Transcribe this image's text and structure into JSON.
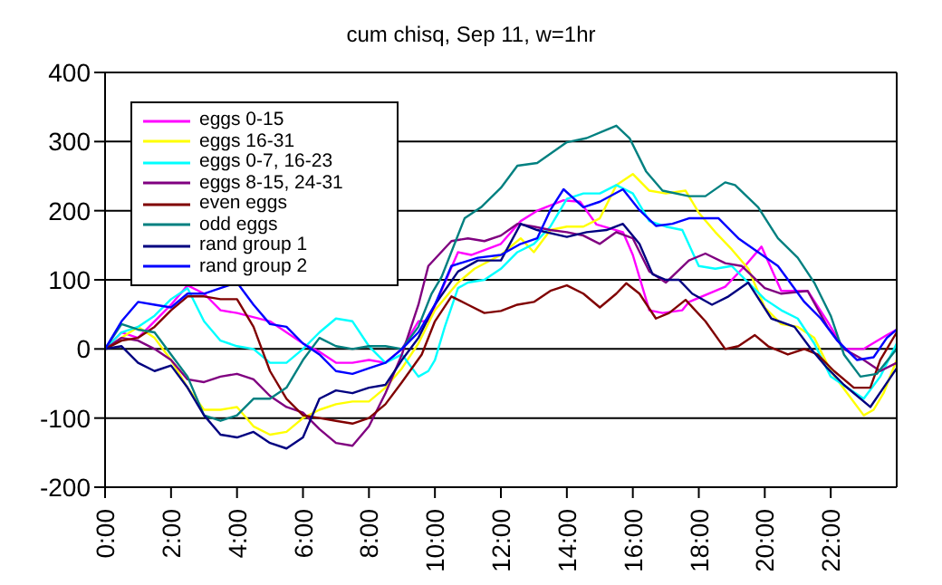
{
  "chart_data": {
    "type": "line",
    "title": "cum chisq, Sep 11, w=1hr",
    "xlim": [
      0,
      24
    ],
    "xticks": [
      {
        "value": 0,
        "label": "0:00"
      },
      {
        "value": 2,
        "label": "2:00"
      },
      {
        "value": 4,
        "label": "4:00"
      },
      {
        "value": 6,
        "label": "6:00"
      },
      {
        "value": 8,
        "label": "8:00"
      },
      {
        "value": 10,
        "label": "10:00"
      },
      {
        "value": 12,
        "label": "12:00"
      },
      {
        "value": 14,
        "label": "14:00"
      },
      {
        "value": 16,
        "label": "16:00"
      },
      {
        "value": 18,
        "label": "18:00"
      },
      {
        "value": 20,
        "label": "20:00"
      },
      {
        "value": 22,
        "label": "22:00"
      }
    ],
    "ylim": [
      -200,
      400
    ],
    "yticks": [
      -200,
      -100,
      0,
      100,
      200,
      300,
      400
    ],
    "grid": "y",
    "legend": "top left",
    "marker": "none",
    "line_style": "solid",
    "series": [
      {
        "name": "eggs 0-15",
        "color": "#ff00ff",
        "x": [
          0,
          0.5,
          1,
          1.5,
          2,
          2.5,
          3,
          3.5,
          4,
          5,
          6,
          6.5,
          7,
          7.5,
          8,
          8.5,
          9,
          9.5,
          9.8,
          10.7,
          11.1,
          12,
          12.6,
          13.1,
          13.9,
          14.4,
          14.9,
          15.7,
          16,
          16.5,
          16.9,
          17.5,
          17.7,
          18.8,
          19.4,
          19.9,
          20.5,
          21.3,
          21.9,
          22.4,
          23,
          23.7,
          24
        ],
        "values": [
          0,
          24,
          16,
          40,
          64,
          92,
          80,
          56,
          52,
          40,
          8,
          -4,
          -20,
          -20,
          -16,
          -20,
          0,
          40,
          40,
          140,
          136,
          152,
          185,
          200,
          215,
          213,
          180,
          169,
          136,
          56,
          52,
          56,
          68,
          90,
          120,
          148,
          84,
          84,
          40,
          0,
          0,
          20,
          28
        ]
      },
      {
        "name": "eggs 16-31",
        "color": "#ffff00",
        "x": [
          0,
          0.5,
          1,
          1.5,
          2,
          2.5,
          3,
          3.5,
          4,
          4.5,
          5,
          5.5,
          6,
          6.5,
          7,
          7.5,
          8,
          8.5,
          9,
          9.5,
          10,
          10.7,
          11.2,
          12,
          12.6,
          13,
          13.5,
          14,
          14.5,
          15,
          15.5,
          16,
          16.5,
          17,
          17.6,
          18,
          18.5,
          19,
          19.5,
          20,
          20.5,
          21,
          21.5,
          22,
          22.5,
          23,
          23.3,
          23.6,
          24
        ],
        "values": [
          0,
          16,
          32,
          16,
          -16,
          -56,
          -88,
          -88,
          -84,
          -112,
          -124,
          -120,
          -100,
          -88,
          -80,
          -76,
          -76,
          -56,
          -28,
          8,
          56,
          96,
          116,
          136,
          160,
          140,
          172,
          177,
          177,
          189,
          237,
          253,
          229,
          225,
          229,
          197,
          169,
          144,
          116,
          60,
          36,
          32,
          16,
          -32,
          -64,
          -96,
          -88,
          -64,
          -16
        ]
      },
      {
        "name": "eggs 0-7, 16-23",
        "color": "#00ffff",
        "x": [
          0,
          0.5,
          1,
          1.5,
          2,
          2.5,
          3,
          3.5,
          4,
          4.5,
          5,
          5.5,
          6,
          6.5,
          7,
          7.5,
          8,
          8.5,
          9,
          9.5,
          9.8,
          10,
          10.3,
          10.7,
          11,
          11.5,
          12,
          12.5,
          13,
          13.5,
          14,
          14.5,
          15,
          15.5,
          16,
          16.5,
          17,
          17.5,
          18,
          18.5,
          19,
          19.5,
          20,
          20.5,
          21,
          21.5,
          22,
          22.5,
          23,
          23.5,
          24
        ],
        "values": [
          0,
          24,
          32,
          48,
          72,
          88,
          40,
          12,
          4,
          0,
          -20,
          -20,
          0,
          24,
          44,
          40,
          4,
          -20,
          -8,
          -40,
          -32,
          -16,
          32,
          88,
          96,
          100,
          116,
          140,
          152,
          177,
          217,
          225,
          225,
          237,
          225,
          185,
          177,
          172,
          120,
          116,
          120,
          96,
          72,
          56,
          44,
          8,
          -40,
          -56,
          -72,
          -40,
          8
        ]
      },
      {
        "name": "eggs 8-15, 24-31",
        "color": "#800080",
        "x": [
          0,
          0.5,
          1,
          1.5,
          2,
          2.5,
          3,
          3.5,
          4,
          4.5,
          5,
          5.5,
          6,
          6.5,
          7,
          7.5,
          8,
          8.5,
          9,
          9.5,
          9.8,
          10.5,
          11,
          11.5,
          12,
          12.5,
          13,
          13.5,
          14,
          14.5,
          15,
          15.5,
          16,
          16.5,
          17,
          17.7,
          18.2,
          18.8,
          19.3,
          20,
          20.5,
          21.3,
          21.9,
          22.4,
          23,
          23.5,
          24
        ],
        "values": [
          0,
          16,
          12,
          0,
          -16,
          -44,
          -48,
          -40,
          -36,
          -44,
          -68,
          -84,
          -92,
          -116,
          -136,
          -140,
          -112,
          -64,
          -8,
          64,
          120,
          156,
          160,
          156,
          164,
          181,
          177,
          172,
          169,
          164,
          152,
          169,
          160,
          112,
          96,
          128,
          138,
          124,
          120,
          88,
          80,
          84,
          32,
          0,
          -16,
          -32,
          -20
        ]
      },
      {
        "name": "even eggs",
        "color": "#800000",
        "x": [
          0,
          0.5,
          1,
          1.5,
          2,
          2.5,
          3,
          3.5,
          4,
          4.5,
          5,
          5.5,
          6,
          6.5,
          7,
          7.5,
          8,
          8.5,
          9,
          9.6,
          10,
          10.5,
          11,
          11.5,
          12,
          12.5,
          13,
          13.5,
          14,
          14.5,
          15,
          15.5,
          15.8,
          16.2,
          16.7,
          17.1,
          17.6,
          18.2,
          18.8,
          19.2,
          19.7,
          20.1,
          20.7,
          21.2,
          21.6,
          22.1,
          22.7,
          23.2,
          23.5,
          24
        ],
        "values": [
          0,
          12,
          16,
          32,
          56,
          76,
          76,
          72,
          72,
          32,
          -32,
          -72,
          -96,
          -100,
          -104,
          -108,
          -100,
          -80,
          -48,
          -8,
          40,
          76,
          64,
          52,
          55,
          64,
          68,
          84,
          92,
          80,
          60,
          80,
          95,
          80,
          44,
          52,
          71,
          40,
          0,
          4,
          20,
          4,
          -8,
          0,
          -8,
          -32,
          -56,
          -56,
          -16,
          24
        ]
      },
      {
        "name": "odd eggs",
        "color": "#008080",
        "x": [
          0,
          0.5,
          1,
          1.5,
          2,
          2.5,
          3,
          3.5,
          4,
          4.5,
          5,
          5.5,
          6,
          6.5,
          7,
          7.5,
          8,
          8.5,
          9,
          9.5,
          9.9,
          10.2,
          10.9,
          11.4,
          12,
          12.5,
          13.1,
          14,
          14.6,
          15.2,
          15.5,
          15.9,
          16.4,
          16.9,
          17.7,
          18.2,
          18.8,
          19.1,
          19.8,
          20.4,
          21,
          21.5,
          22,
          22.4,
          22.9,
          23.4,
          24
        ],
        "values": [
          0,
          36,
          28,
          24,
          -8,
          -40,
          -96,
          -104,
          -96,
          -72,
          -72,
          -56,
          -16,
          16,
          4,
          0,
          4,
          4,
          0,
          32,
          80,
          104,
          189,
          205,
          233,
          265,
          269,
          299,
          305,
          317,
          323,
          305,
          257,
          229,
          221,
          221,
          241,
          237,
          205,
          160,
          132,
          96,
          48,
          -8,
          -40,
          -36,
          0
        ]
      },
      {
        "name": "rand group 1",
        "color": "#000080",
        "x": [
          0,
          0.5,
          1,
          1.5,
          2,
          2.5,
          3,
          3.5,
          4,
          4.5,
          5,
          5.5,
          6,
          6.5,
          7,
          7.5,
          8,
          8.5,
          9,
          9.5,
          10,
          10.7,
          11.3,
          12,
          12.6,
          13.1,
          14,
          14.6,
          15.2,
          15.7,
          16.2,
          16.6,
          17,
          17.4,
          17.8,
          18.4,
          18.9,
          19.5,
          20.2,
          20.9,
          21.4,
          21.9,
          22.4,
          23.2,
          23.6,
          24
        ],
        "values": [
          0,
          4,
          -20,
          -32,
          -24,
          -56,
          -96,
          -124,
          -128,
          -120,
          -136,
          -144,
          -128,
          -72,
          -60,
          -64,
          -56,
          -52,
          -16,
          16,
          64,
          112,
          128,
          128,
          181,
          172,
          162,
          169,
          172,
          181,
          152,
          108,
          100,
          100,
          80,
          64,
          76,
          96,
          44,
          32,
          0,
          -28,
          -52,
          -84,
          -56,
          -28
        ]
      },
      {
        "name": "rand group 2",
        "color": "#0000ff",
        "x": [
          0,
          0.5,
          1,
          1.5,
          2,
          2.5,
          3,
          3.5,
          4,
          4.5,
          5,
          5.5,
          6,
          6.5,
          7,
          7.5,
          8,
          8.5,
          9,
          9.5,
          10,
          10.5,
          11.3,
          12,
          12.6,
          13.1,
          13.5,
          13.9,
          14.5,
          15,
          15.7,
          16.2,
          16.7,
          17.2,
          17.7,
          18.6,
          19.2,
          19.8,
          20.4,
          21.2,
          21.7,
          22.2,
          22.8,
          23.3,
          23.7,
          24
        ],
        "values": [
          0,
          40,
          68,
          64,
          60,
          80,
          80,
          88,
          96,
          64,
          36,
          32,
          8,
          -8,
          -32,
          -36,
          -28,
          -20,
          0,
          24,
          64,
          120,
          132,
          136,
          152,
          160,
          201,
          231,
          205,
          213,
          231,
          201,
          178,
          181,
          189,
          189,
          160,
          140,
          120,
          68,
          44,
          12,
          -16,
          -12,
          16,
          28
        ]
      }
    ]
  }
}
